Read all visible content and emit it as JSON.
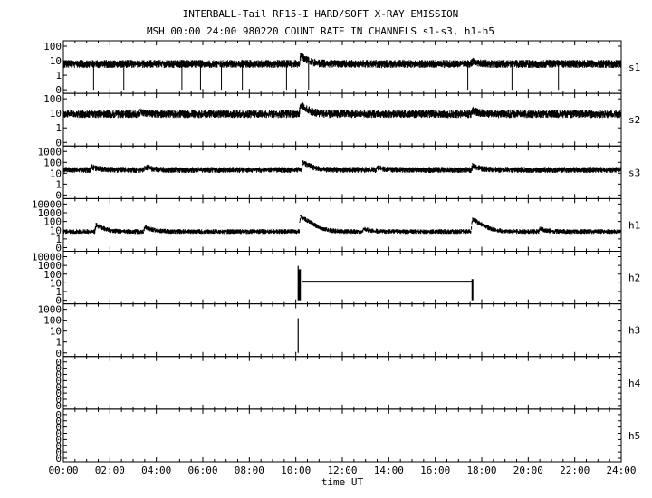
{
  "header": {
    "title": "INTERBALL-Tail RF15-I HARD/SOFT X-RAY EMISSION",
    "subtitle": "MSH 00:00 24:00 980220  COUNT RATE IN CHANNELS s1-s3, h1-h5"
  },
  "chart_data": {
    "type": "line",
    "xlabel": "time UT",
    "xlim": [
      0,
      24
    ],
    "x_ticks": [
      "00:00",
      "02:00",
      "04:00",
      "06:00",
      "08:00",
      "10:00",
      "12:00",
      "14:00",
      "16:00",
      "18:00",
      "20:00",
      "22:00",
      "24:00"
    ],
    "y_scale": "log",
    "panels": [
      {
        "name": "s1",
        "y_ticks": [
          "100",
          "10",
          "1",
          "0"
        ],
        "baseline": 6,
        "bursts": [
          {
            "t": 10.2,
            "peak": 22
          },
          {
            "t": 17.6,
            "peak": 10
          }
        ],
        "dropouts": [
          1.3,
          2.6,
          5.1,
          5.9,
          6.8,
          7.7,
          9.6,
          10.55,
          17.4,
          19.3,
          21.3
        ]
      },
      {
        "name": "s2",
        "y_ticks": [
          "100",
          "10",
          "1",
          "0"
        ],
        "baseline": 9,
        "bursts": [
          {
            "t": 3.3,
            "peak": 14
          },
          {
            "t": 10.2,
            "peak": 40
          },
          {
            "t": 17.6,
            "peak": 16
          }
        ]
      },
      {
        "name": "s3",
        "y_ticks": [
          "1000",
          "100",
          "10",
          "1",
          "0"
        ],
        "baseline": 20,
        "bursts": [
          {
            "t": 1.2,
            "peak": 40
          },
          {
            "t": 3.5,
            "peak": 40
          },
          {
            "t": 10.3,
            "peak": 110
          },
          {
            "t": 13.5,
            "peak": 35
          },
          {
            "t": 17.6,
            "peak": 50
          }
        ]
      },
      {
        "name": "h1",
        "y_ticks": [
          "10000",
          "1000",
          "100",
          "10",
          "1",
          "0"
        ],
        "baseline": 7,
        "bursts": [
          {
            "t": 1.4,
            "peak": 40
          },
          {
            "t": 3.5,
            "peak": 25
          },
          {
            "t": 10.2,
            "peak": 400
          },
          {
            "t": 12.9,
            "peak": 15
          },
          {
            "t": 17.6,
            "peak": 200
          },
          {
            "t": 20.5,
            "peak": 15
          }
        ]
      },
      {
        "name": "h2",
        "y_ticks": [
          "10000",
          "1000",
          "100",
          "10",
          "1",
          "0"
        ],
        "baseline": 0,
        "bursts": [
          {
            "t": 10.1,
            "peak": 900
          }
        ],
        "plateau": {
          "start": 10.25,
          "end": 17.6,
          "value": 15
        }
      },
      {
        "name": "h3",
        "y_ticks": [
          "1000",
          "100",
          "10",
          "1",
          "0"
        ],
        "baseline": 0,
        "bursts": [
          {
            "t": 10.1,
            "peak": 150
          }
        ]
      },
      {
        "name": "h4",
        "y_ticks": [
          "0",
          "0",
          "0",
          "0",
          "0",
          "0",
          "0",
          "0"
        ],
        "baseline": 0,
        "bursts": []
      },
      {
        "name": "h5",
        "y_ticks": [
          "0",
          "0",
          "0",
          "0",
          "0",
          "0",
          "0",
          "0"
        ],
        "baseline": 0,
        "bursts": []
      }
    ]
  }
}
